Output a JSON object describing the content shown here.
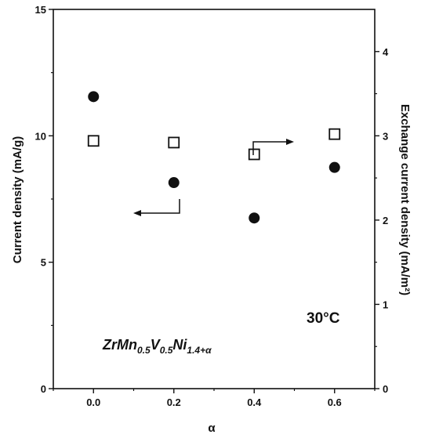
{
  "chart_data": {
    "type": "scatter",
    "title": "",
    "xlabel": "α",
    "ylabel_left": "Current density (mA/g)",
    "ylabel_right": "Exchange current density (mA/m²)",
    "xlim": [
      -0.1,
      0.7
    ],
    "ylim_left": [
      0,
      15
    ],
    "ylim_right": [
      0,
      4.5
    ],
    "x_ticks": [
      0.0,
      0.2,
      0.4,
      0.6
    ],
    "x_tick_labels": [
      "0.0",
      "0.2",
      "0.4",
      "0.6"
    ],
    "y_left_ticks": [
      0,
      5,
      10,
      15
    ],
    "y_left_tick_labels": [
      "0",
      "5",
      "10",
      "15"
    ],
    "y_right_ticks": [
      0,
      1,
      2,
      3,
      4
    ],
    "y_right_tick_labels": [
      "0",
      "1",
      "2",
      "3",
      "4"
    ],
    "grid": false,
    "series": [
      {
        "marker": "filled-circle",
        "axis": "left",
        "color": "#111111",
        "x": [
          0.0,
          0.2,
          0.4,
          0.6
        ],
        "y": [
          11.55,
          8.15,
          6.75,
          8.75
        ]
      },
      {
        "marker": "open-square",
        "axis": "right",
        "color": "#111111",
        "x": [
          0.0,
          0.2,
          0.4,
          0.6
        ],
        "y": [
          2.94,
          2.92,
          2.78,
          3.02
        ]
      }
    ],
    "annotations": {
      "temperature": "30°C",
      "formula": {
        "parts": [
          {
            "text": "ZrMn",
            "sub": false
          },
          {
            "text": "0.5",
            "sub": true
          },
          {
            "text": "V",
            "sub": false
          },
          {
            "text": "0.5",
            "sub": true
          },
          {
            "text": "Ni",
            "sub": false
          },
          {
            "text": "1.4+α",
            "sub": true
          }
        ]
      }
    }
  }
}
